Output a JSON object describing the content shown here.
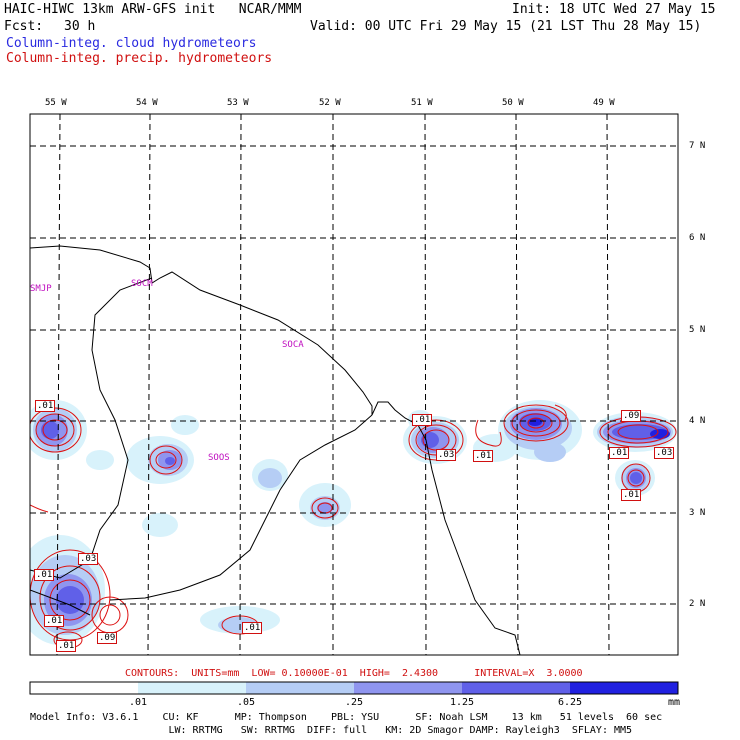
{
  "header": {
    "model_title": "HAIC-HIWC 13km ARW-GFS init   NCAR/MMM",
    "init": "Init: 18 UTC Wed 27 May 15",
    "fcst_label": "Fcst:",
    "fcst_value": "30 h",
    "valid": "Valid: 00 UTC Fri 29 May 15 (21 LST Thu 28 May 15)",
    "field1": "Column-integ. cloud hydrometeors",
    "field2": "Column-integ. precip. hydrometeors"
  },
  "map": {
    "lon_labels": [
      "55 W",
      "54 W",
      "53 W",
      "52 W",
      "51 W",
      "50 W",
      "49 W"
    ],
    "lat_labels": [
      "7 N",
      "6 N",
      "5 N",
      "4 N",
      "3 N",
      "2 N"
    ],
    "stations": [
      "SMJP",
      "SOCM",
      "SOCA",
      "SOOS"
    ],
    "contour_labels": [
      ".01",
      ".01",
      ".03",
      ".01",
      ".09",
      ".01",
      ".03",
      ".01",
      ".01",
      ".01",
      ".03",
      ".01",
      ".09",
      ".01"
    ]
  },
  "contour_info": "CONTOURS:  UNITS=mm  LOW= 0.10000E-01  HIGH=  2.4300      INTERVAL=X  3.0000",
  "colorbar": {
    "values": [
      ".01",
      ".05",
      ".25",
      "1.25",
      "6.25"
    ],
    "units": "mm",
    "colors": [
      "#ffffff",
      "#d8f2fb",
      "#b5cdf5",
      "#8f95ef",
      "#6060e8",
      "#2020e0"
    ]
  },
  "model_info": {
    "line1": "Model Info: V3.6.1    CU: KF      MP: Thompson    PBL: YSU      SF: Noah LSM    13 km   51 levels  60 sec",
    "line2": "                       LW: RRTMG   SW: RRTMG  DIFF: full   KM: 2D Smagor DAMP: Rayleigh3  SFLAY: MM5"
  }
}
